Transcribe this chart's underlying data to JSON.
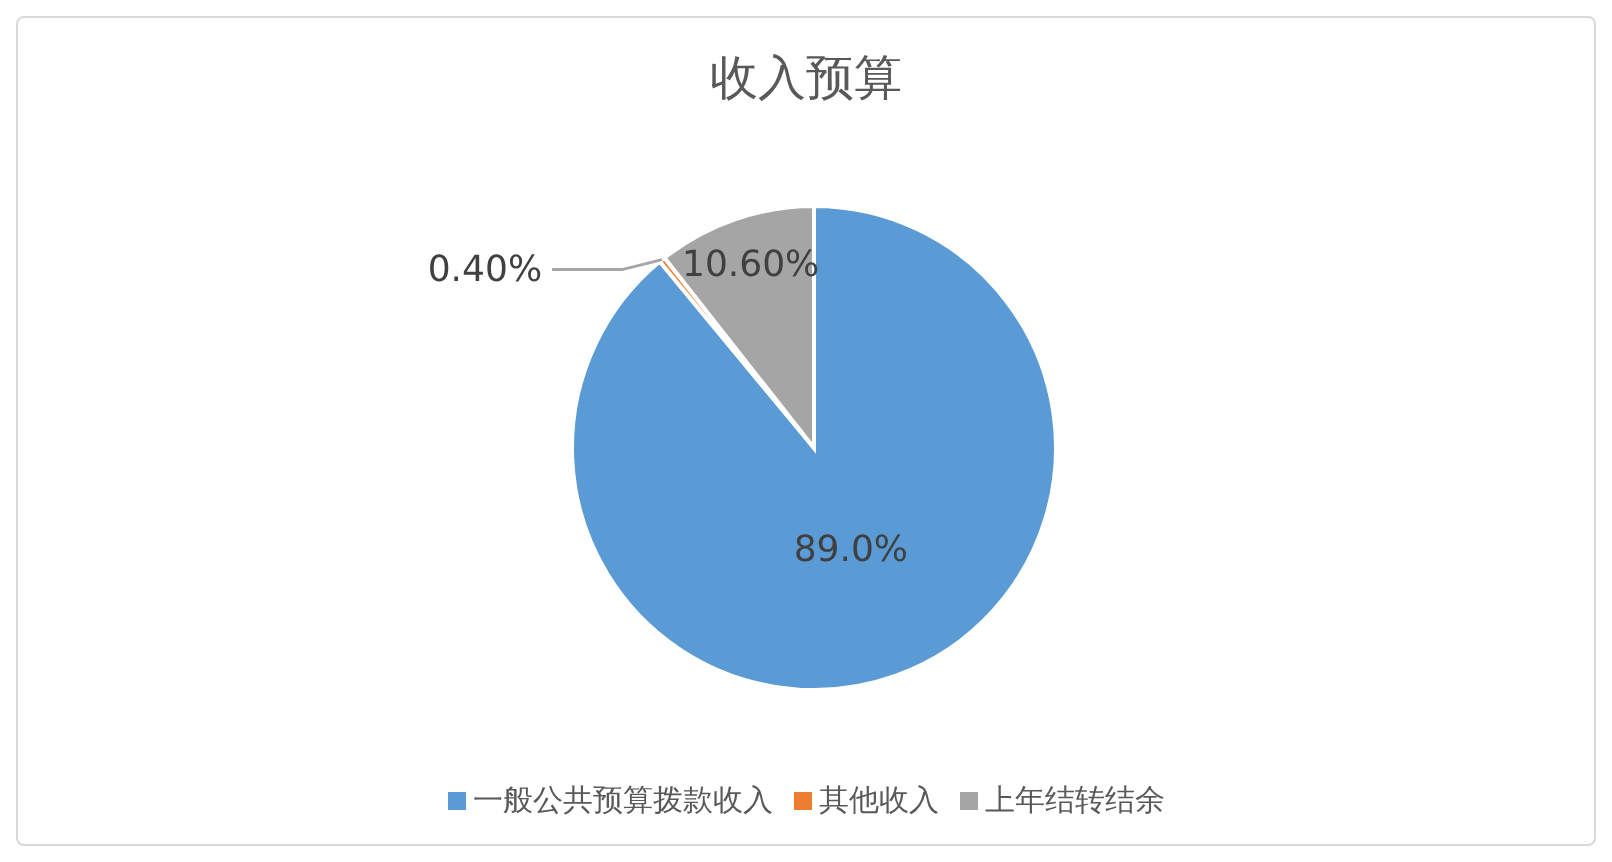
{
  "chart_data": {
    "type": "pie",
    "title": "收入预算",
    "categories": [
      "一般公共预算拨款收入",
      "其他收入",
      "上年结转结余"
    ],
    "values": [
      89.0,
      0.4,
      10.6
    ],
    "value_labels": [
      "89.0%",
      "0.40%",
      "10.60%"
    ],
    "colors": [
      "#5b9bd5",
      "#ed7d31",
      "#a5a5a5"
    ],
    "legend": "bottom"
  }
}
